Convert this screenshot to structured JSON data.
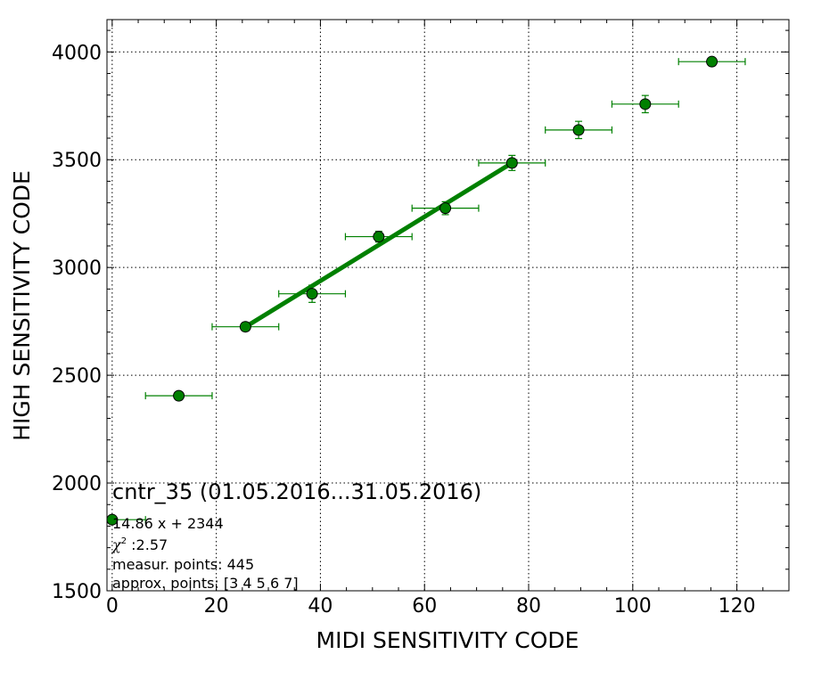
{
  "chart_data": {
    "type": "scatter",
    "xlabel": "MIDI SENSITIVITY CODE",
    "ylabel": "HIGH SENSITIVITY CODE",
    "xlim": [
      -1,
      130
    ],
    "ylim": [
      1500,
      4150
    ],
    "xticks": [
      0,
      20,
      40,
      60,
      80,
      100,
      120
    ],
    "yticks": [
      1500,
      2000,
      2500,
      3000,
      3500,
      4000
    ],
    "grid": true,
    "marker_color": "#008000",
    "fit_line_color": "#008000",
    "points": [
      {
        "x": 0,
        "y": 1830,
        "xerr": 6.4,
        "yerr": 0
      },
      {
        "x": 12.8,
        "y": 2405,
        "xerr": 6.4,
        "yerr": 5
      },
      {
        "x": 25.6,
        "y": 2725,
        "xerr": 6.4,
        "yerr": 20
      },
      {
        "x": 38.4,
        "y": 2878,
        "xerr": 6.4,
        "yerr": 40
      },
      {
        "x": 51.2,
        "y": 3143,
        "xerr": 6.4,
        "yerr": 25
      },
      {
        "x": 64.0,
        "y": 3275,
        "xerr": 6.4,
        "yerr": 30
      },
      {
        "x": 76.8,
        "y": 3485,
        "xerr": 6.4,
        "yerr": 35
      },
      {
        "x": 89.6,
        "y": 3638,
        "xerr": 6.4,
        "yerr": 40
      },
      {
        "x": 102.4,
        "y": 3758,
        "xerr": 6.4,
        "yerr": 40
      },
      {
        "x": 115.2,
        "y": 3955,
        "xerr": 6.4,
        "yerr": 0
      }
    ],
    "fit_line": {
      "x": [
        25.6,
        76.8
      ],
      "y": [
        2724,
        3485
      ]
    },
    "annotation": {
      "title": "cntr_35 (01.05.2016...31.05.2016)",
      "equation": "14.86 x + 2344",
      "chi_symbol": "χ",
      "chi_sup": "2",
      "chi_value": " :2.57",
      "measur": "measur. points: 445",
      "approx": "approx. points: [3 4 5 6 7]"
    }
  }
}
